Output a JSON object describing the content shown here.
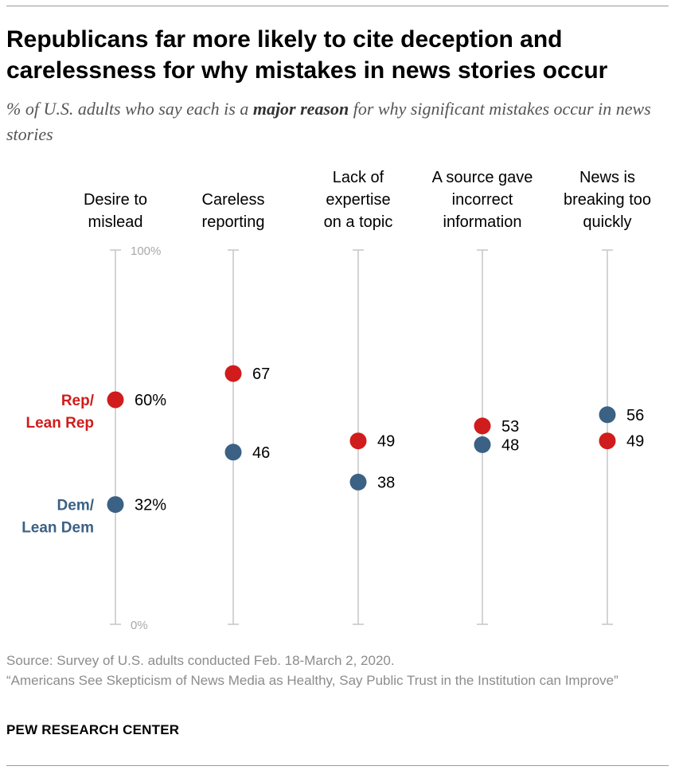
{
  "title": "Republicans far more likely to cite deception and carelessness for why mistakes in news stories occur",
  "subtitle": {
    "pre": "% of U.S. adults who say each is a ",
    "emphasis": "major reason",
    "post": " for why significant mistakes occur in news stories"
  },
  "source": {
    "line1": "Source: Survey of U.S. adults conducted Feb. 18-March 2, 2020.",
    "line2": "“Americans See Skepticism of News Media as Healthy, Say Public Trust in the Institution can Improve”"
  },
  "organization": "PEW RESEARCH CENTER",
  "colors": {
    "rep": "#d01c1c",
    "dem": "#3b6184",
    "axis": "#c6c6c6",
    "tick_text": "#a8a8a8",
    "text": "#000000"
  },
  "chart_data": {
    "type": "dot",
    "ylim": [
      0,
      100
    ],
    "axis_labels": {
      "top": "100%",
      "bottom": "0%"
    },
    "categories": [
      [
        "Desire to",
        "mislead"
      ],
      [
        "Careless",
        "reporting"
      ],
      [
        "Lack of",
        "expertise",
        "on a topic"
      ],
      [
        "A source gave",
        "incorrect",
        "information"
      ],
      [
        "News is",
        "breaking too",
        "quickly"
      ]
    ],
    "series": [
      {
        "name": "Rep/Lean Rep",
        "label_lines": [
          "Rep/",
          "Lean Rep"
        ],
        "color": "#d01c1c",
        "values": [
          60,
          67,
          49,
          53,
          49
        ],
        "value_labels": [
          "60%",
          "67",
          "49",
          "53",
          "49"
        ]
      },
      {
        "name": "Dem/Lean Dem",
        "label_lines": [
          "Dem/",
          "Lean Dem"
        ],
        "color": "#3b6184",
        "values": [
          32,
          46,
          38,
          48,
          56
        ],
        "value_labels": [
          "32%",
          "46",
          "38",
          "48",
          "56"
        ]
      }
    ]
  }
}
